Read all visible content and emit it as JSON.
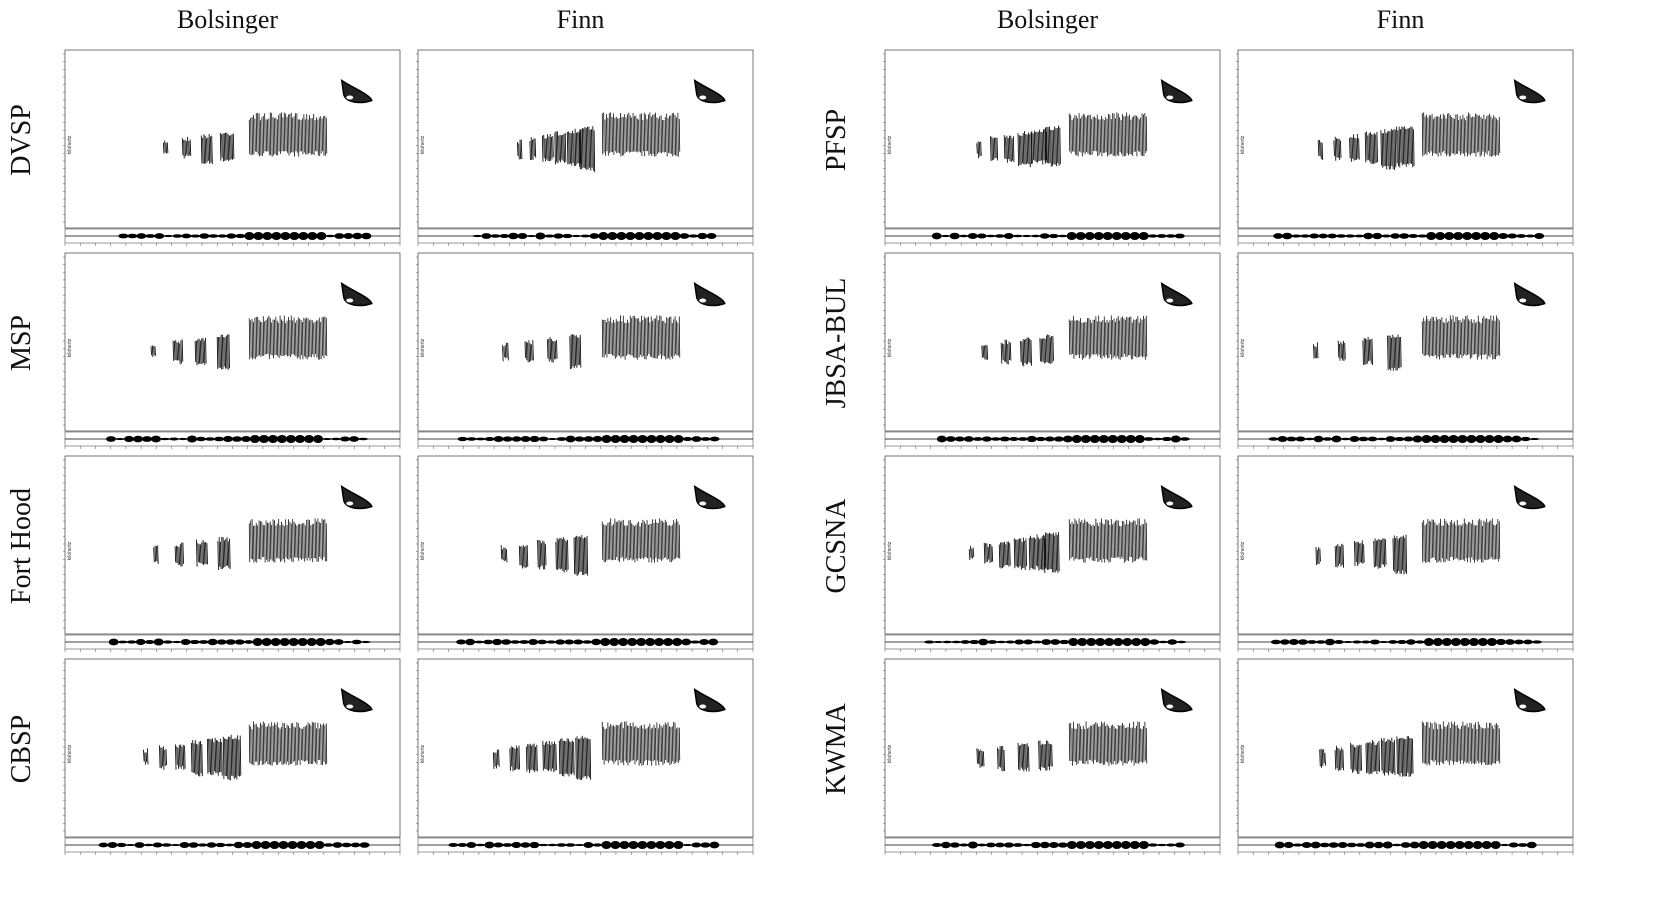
{
  "left": {
    "columns": [
      "Bolsinger",
      "Finn"
    ],
    "rows": [
      "DVSP",
      "MSP",
      "Fort Hood",
      "CBSP"
    ]
  },
  "right": {
    "columns": [
      "Bolsinger",
      "Finn"
    ],
    "rows": [
      "PFSP",
      "JBSA-BUL",
      "GCSNA",
      "KWMA"
    ]
  },
  "y_axis_label": "kilohertz"
}
